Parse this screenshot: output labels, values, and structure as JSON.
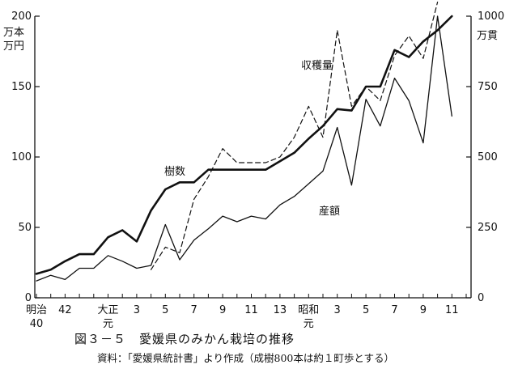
{
  "caption": {
    "title": "図３－５　愛媛県のみかん栽培の推移",
    "source": "資料：「愛媛県統計書」より作成（成樹800本は約１町歩とする）"
  },
  "chart_data": {
    "type": "line",
    "left_axis": {
      "label": [
        "万本",
        "万円"
      ],
      "ylim": [
        0,
        200
      ],
      "ticks": [
        "0",
        "50",
        "100",
        "150",
        "200"
      ]
    },
    "right_axis": {
      "label": [
        "万貫"
      ],
      "ylim": [
        0,
        1000
      ],
      "ticks": [
        "0",
        "250",
        "500",
        "750",
        "1000"
      ]
    },
    "x": {
      "n": 31,
      "tick_labels": [
        {
          "i": 0,
          "lines": [
            "明治",
            "40"
          ]
        },
        {
          "i": 2,
          "lines": [
            "42"
          ]
        },
        {
          "i": 5,
          "lines": [
            "大正",
            "元"
          ]
        },
        {
          "i": 7,
          "lines": [
            "3"
          ]
        },
        {
          "i": 9,
          "lines": [
            "5"
          ]
        },
        {
          "i": 11,
          "lines": [
            "7"
          ]
        },
        {
          "i": 13,
          "lines": [
            "9"
          ]
        },
        {
          "i": 15,
          "lines": [
            "11"
          ]
        },
        {
          "i": 17,
          "lines": [
            "13"
          ]
        },
        {
          "i": 19,
          "lines": [
            "昭和",
            "元"
          ]
        },
        {
          "i": 21,
          "lines": [
            "3"
          ]
        },
        {
          "i": 23,
          "lines": [
            "5"
          ]
        },
        {
          "i": 25,
          "lines": [
            "7"
          ]
        },
        {
          "i": 27,
          "lines": [
            "9"
          ]
        },
        {
          "i": 29,
          "lines": [
            "11"
          ]
        }
      ]
    },
    "series": [
      {
        "name": "樹数",
        "axis": "left",
        "style": "thick",
        "values": [
          17,
          20,
          26,
          31,
          31,
          43,
          48,
          40,
          62,
          77,
          82,
          82,
          91,
          91,
          91,
          91,
          91,
          97,
          103,
          113,
          122,
          134,
          133,
          150,
          150,
          176,
          171,
          182,
          190,
          200,
          null
        ]
      },
      {
        "name": "収穫量",
        "axis": "right",
        "style": "dashed",
        "values": [
          null,
          null,
          null,
          null,
          null,
          null,
          null,
          null,
          100,
          180,
          160,
          350,
          430,
          530,
          480,
          480,
          480,
          500,
          570,
          680,
          570,
          950,
          680,
          750,
          700,
          860,
          930,
          850,
          1050,
          null,
          1050
        ]
      },
      {
        "name": "産額",
        "axis": "left",
        "style": "thin",
        "values": [
          12,
          16,
          13,
          21,
          21,
          30,
          26,
          21,
          23,
          52,
          27,
          41,
          49,
          58,
          54,
          58,
          56,
          66,
          72,
          81,
          90,
          121,
          80,
          141,
          122,
          156,
          140,
          110,
          200,
          129,
          null
        ]
      }
    ],
    "annotations": [
      "収穫量",
      "樹数",
      "産額"
    ]
  }
}
